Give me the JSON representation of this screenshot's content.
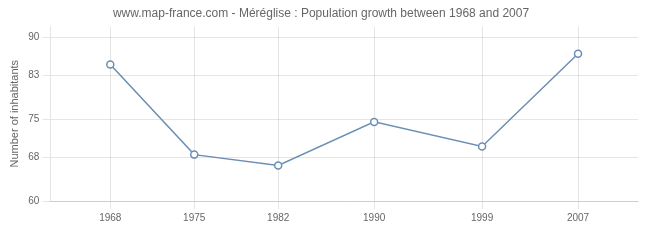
{
  "chart_data": {
    "type": "line",
    "title": "www.map-france.com - Méréglise : Population growth between 1968 and 2007",
    "ylabel": "Number of inhabitants",
    "x": [
      1968,
      1975,
      1982,
      1990,
      1999,
      2007
    ],
    "values": [
      85,
      68.5,
      66.5,
      74.5,
      70,
      87
    ],
    "color": "#6a8fb5",
    "marker": "circle",
    "xlim": [
      1963,
      2012
    ],
    "xticks": [
      1968,
      1975,
      1982,
      1990,
      1999,
      2007
    ],
    "ylim": [
      60,
      92
    ],
    "yticks": [
      60,
      68,
      75,
      83,
      90
    ],
    "grid": true
  }
}
